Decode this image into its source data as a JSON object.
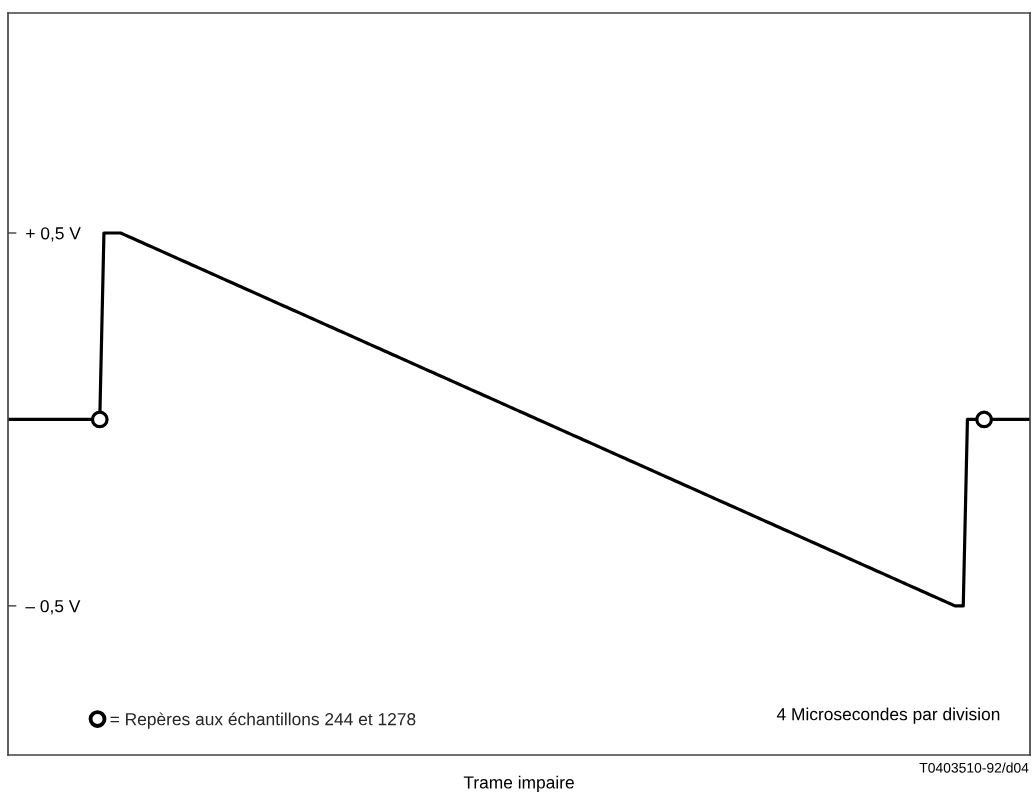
{
  "chart_data": {
    "type": "line",
    "xlabel": "Trame impaire",
    "annotations": [
      "4 Microsecondes par division",
      "T0403510-92/d04"
    ],
    "categories": [
      null,
      null,
      null,
      null,
      null,
      null,
      null,
      null,
      null,
      null,
      null,
      null,
      null,
      null,
      null,
      null,
      null,
      null,
      null,
      null,
      null,
      null,
      null,
      null,
      null,
      null,
      null,
      null,
      null,
      null,
      null,
      null,
      null,
      null,
      null,
      null,
      null,
      null,
      null,
      null,
      null,
      null,
      null,
      null,
      null,
      null,
      null,
      null,
      null,
      null,
      null,
      null,
      null,
      null,
      null,
      null,
      null,
      null,
      null,
      null,
      null,
      null,
      null,
      null,
      null,
      null,
      null,
      null,
      null,
      null,
      null,
      null,
      null,
      null,
      null,
      null,
      null,
      null,
      null,
      null,
      null,
      null,
      null,
      null,
      null,
      null,
      null,
      null,
      null,
      null,
      null,
      null,
      null,
      null,
      null,
      null,
      null,
      null,
      null,
      null,
      null,
      null,
      null,
      null,
      null,
      null,
      null,
      null,
      null,
      null,
      null,
      null,
      null,
      null,
      null,
      null,
      null,
      null,
      null,
      null,
      null,
      null,
      null,
      null,
      null,
      null,
      null,
      null,
      null,
      null,
      null,
      null,
      null,
      null,
      null,
      null,
      null,
      null,
      null,
      null,
      null,
      null,
      null,
      null,
      null,
      null,
      null,
      null,
      null,
      null,
      null,
      null,
      null,
      null,
      null,
      null,
      null,
      null,
      null,
      null,
      null,
      null,
      null,
      null,
      null,
      null,
      null,
      null,
      null,
      null,
      null,
      null,
      null,
      null,
      null,
      null,
      null,
      null,
      null,
      null,
      null,
      null,
      null,
      null,
      null,
      null,
      null,
      null,
      null,
      null,
      null,
      null,
      null,
      null,
      null,
      null,
      null,
      null,
      null,
      null,
      null,
      null,
      null,
      null,
      null,
      null,
      null,
      null,
      null,
      null,
      null,
      null,
      null,
      null,
      null,
      null,
      null,
      null,
      null,
      null,
      null,
      null,
      null,
      null,
      null,
      null,
      null,
      null,
      null,
      null,
      null,
      null,
      null,
      null,
      null,
      null,
      null,
      null,
      null,
      null,
      null,
      null,
      null,
      null,
      null,
      null
    ],
    "ylim": [
      -0.9,
      1.09
    ],
    "yticks": [
      {
        "value": 0.5,
        "label": "+ 0,5 V"
      },
      {
        "value": -0.5,
        "label": "– 0,5 V"
      }
    ],
    "tick_labels": "y",
    "legend": "bottom left",
    "line_style": "solid",
    "series": [
      {
        "color": "#000000",
        "values": [
          0,
          0,
          0,
          0,
          0,
          0,
          0,
          0,
          0,
          0,
          0,
          0,
          0,
          0,
          0,
          0,
          0,
          0,
          0,
          0,
          0,
          0,
          0,
          0.5,
          0.5,
          0.5,
          0.5,
          0.5,
          0.495,
          0.49,
          0.485,
          0.48,
          0.475,
          0.47,
          0.465,
          0.46,
          0.455,
          0.45,
          0.445,
          0.44,
          0.435,
          0.43,
          0.425,
          0.42,
          0.415,
          0.41,
          0.405,
          0.4,
          0.395,
          0.39,
          0.385,
          0.38,
          0.375,
          0.37,
          0.365,
          0.36,
          0.355,
          0.35,
          0.345,
          0.34,
          0.335,
          0.33,
          0.325,
          0.32,
          0.315,
          0.31,
          0.305,
          0.3,
          0.295,
          0.29,
          0.285,
          0.28,
          0.275,
          0.27,
          0.265,
          0.26,
          0.255,
          0.25,
          0.245,
          0.24,
          0.235,
          0.23,
          0.225,
          0.22,
          0.215,
          0.21,
          0.205,
          0.2,
          0.195,
          0.19,
          0.185,
          0.18,
          0.175,
          0.17,
          0.165,
          0.16,
          0.155,
          0.15,
          0.145,
          0.14,
          0.135,
          0.13,
          0.125,
          0.12,
          0.115,
          0.11,
          0.105,
          0.1,
          0.095,
          0.09,
          0.085,
          0.08,
          0.075,
          0.07,
          0.065,
          0.06,
          0.055,
          0.05,
          0.045,
          0.04,
          0.035,
          0.03,
          0.025,
          0.02,
          0.015,
          0.01,
          0.005,
          0,
          -0.005,
          -0.01,
          -0.015,
          -0.02,
          -0.025,
          -0.03,
          -0.035,
          -0.04,
          -0.045,
          -0.05,
          -0.055,
          -0.06,
          -0.065,
          -0.07,
          -0.075,
          -0.08,
          -0.085,
          -0.09,
          -0.095,
          -0.1,
          -0.105,
          -0.11,
          -0.115,
          -0.12,
          -0.125,
          -0.13,
          -0.135,
          -0.14,
          -0.145,
          -0.15,
          -0.155,
          -0.16,
          -0.165,
          -0.17,
          -0.175,
          -0.18,
          -0.185,
          -0.19,
          -0.195,
          -0.2,
          -0.205,
          -0.21,
          -0.215,
          -0.22,
          -0.225,
          -0.23,
          -0.235,
          -0.24,
          -0.245,
          -0.25,
          -0.255,
          -0.26,
          -0.265,
          -0.27,
          -0.275,
          -0.28,
          -0.285,
          -0.29,
          -0.295,
          -0.3,
          -0.305,
          -0.31,
          -0.315,
          -0.32,
          -0.325,
          -0.33,
          -0.335,
          -0.34,
          -0.345,
          -0.35,
          -0.355,
          -0.36,
          -0.365,
          -0.37,
          -0.375,
          -0.38,
          -0.385,
          -0.39,
          -0.395,
          -0.4,
          -0.405,
          -0.41,
          -0.415,
          -0.42,
          -0.425,
          -0.43,
          -0.435,
          -0.44,
          -0.445,
          -0.45,
          -0.455,
          -0.46,
          -0.465,
          -0.47,
          -0.475,
          -0.48,
          -0.485,
          -0.49,
          -0.495,
          -0.5,
          -0.5,
          -0.5,
          0,
          0,
          0,
          0,
          0,
          0,
          0,
          0,
          0,
          0,
          0,
          0,
          0,
          0,
          0,
          0
        ]
      },
      {
        "type": "scatter",
        "name": "= Repères aux échantillons 244 et 1278",
        "color": "#000000",
        "marker": "circle",
        "values": [
          null,
          null,
          null,
          null,
          null,
          null,
          null,
          null,
          null,
          null,
          null,
          null,
          null,
          null,
          null,
          null,
          null,
          null,
          null,
          null,
          null,
          null,
          0,
          null,
          null,
          null,
          null,
          null,
          null,
          null,
          null,
          null,
          null,
          null,
          null,
          null,
          null,
          null,
          null,
          null,
          null,
          null,
          null,
          null,
          null,
          null,
          null,
          null,
          null,
          null,
          null,
          null,
          null,
          null,
          null,
          null,
          null,
          null,
          null,
          null,
          null,
          null,
          null,
          null,
          null,
          null,
          null,
          null,
          null,
          null,
          null,
          null,
          null,
          null,
          null,
          null,
          null,
          null,
          null,
          null,
          null,
          null,
          null,
          null,
          null,
          null,
          null,
          null,
          null,
          null,
          null,
          null,
          null,
          null,
          null,
          null,
          null,
          null,
          null,
          null,
          null,
          null,
          null,
          null,
          null,
          null,
          null,
          null,
          null,
          null,
          null,
          null,
          null,
          null,
          null,
          null,
          null,
          null,
          null,
          null,
          null,
          null,
          null,
          null,
          null,
          null,
          null,
          null,
          null,
          null,
          null,
          null,
          null,
          null,
          null,
          null,
          null,
          null,
          null,
          null,
          null,
          null,
          null,
          null,
          null,
          null,
          null,
          null,
          null,
          null,
          null,
          null,
          null,
          null,
          null,
          null,
          null,
          null,
          null,
          null,
          null,
          null,
          null,
          null,
          null,
          null,
          null,
          null,
          null,
          null,
          null,
          null,
          null,
          null,
          null,
          null,
          null,
          null,
          null,
          null,
          null,
          null,
          null,
          null,
          null,
          null,
          null,
          null,
          null,
          null,
          null,
          null,
          null,
          null,
          null,
          null,
          null,
          null,
          null,
          null,
          null,
          null,
          null,
          null,
          null,
          null,
          null,
          null,
          null,
          null,
          null,
          null,
          null,
          null,
          null,
          null,
          null,
          null,
          null,
          null,
          null,
          null,
          null,
          null,
          null,
          null,
          null,
          null,
          null,
          null,
          null,
          null,
          null,
          null,
          0,
          null,
          null,
          null,
          null,
          null,
          null,
          null,
          null,
          null,
          null,
          null
        ]
      }
    ]
  }
}
